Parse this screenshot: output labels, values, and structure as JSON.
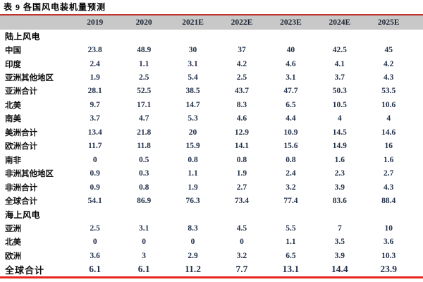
{
  "title": "表 9  各国风电装机量预测",
  "colors": {
    "header_background": "#c8c8c8",
    "top_rule": "#bf362c",
    "bottom_rule": "#e8261d",
    "value_text": "#22304a",
    "label_text": "#101010"
  },
  "chart_data": {
    "type": "table",
    "title": "表 9  各国风电装机量预测",
    "columns": [
      "2019",
      "2020",
      "2021E",
      "2022E",
      "2023E",
      "2024E",
      "2025E"
    ],
    "rows": [
      {
        "label": "陆上风电",
        "kind": "section",
        "values": []
      },
      {
        "label": "中国",
        "kind": "data",
        "values": [
          "23.8",
          "48.9",
          "30",
          "37",
          "40",
          "42.5",
          "45"
        ]
      },
      {
        "label": "印度",
        "kind": "data",
        "values": [
          "2.4",
          "1.1",
          "3.1",
          "4.2",
          "4.6",
          "4.1",
          "4.2"
        ]
      },
      {
        "label": "亚洲其他地区",
        "kind": "data",
        "values": [
          "1.9",
          "2.5",
          "5.4",
          "2.5",
          "3.1",
          "3.7",
          "4.3"
        ]
      },
      {
        "label": "亚洲合计",
        "kind": "data",
        "values": [
          "28.1",
          "52.5",
          "38.5",
          "43.7",
          "47.7",
          "50.3",
          "53.5"
        ]
      },
      {
        "label": "北美",
        "kind": "data",
        "values": [
          "9.7",
          "17.1",
          "14.7",
          "8.3",
          "6.5",
          "10.5",
          "10.6"
        ]
      },
      {
        "label": "南美",
        "kind": "data",
        "values": [
          "3.7",
          "4.7",
          "5.3",
          "4.6",
          "4.4",
          "4",
          "4"
        ]
      },
      {
        "label": "美洲合计",
        "kind": "data",
        "values": [
          "13.4",
          "21.8",
          "20",
          "12.9",
          "10.9",
          "14.5",
          "14.6"
        ]
      },
      {
        "label": "欧洲合计",
        "kind": "data",
        "values": [
          "11.7",
          "11.8",
          "15.9",
          "14.1",
          "15.6",
          "14.9",
          "16"
        ]
      },
      {
        "label": "南非",
        "kind": "data",
        "values": [
          "0",
          "0.5",
          "0.8",
          "0.8",
          "0.8",
          "1.6",
          "1.6"
        ]
      },
      {
        "label": "非洲其他地区",
        "kind": "data",
        "values": [
          "0.9",
          "0.3",
          "1.1",
          "1.9",
          "2.4",
          "2.3",
          "2.7"
        ]
      },
      {
        "label": "非洲合计",
        "kind": "data",
        "values": [
          "0.9",
          "0.8",
          "1.9",
          "2.7",
          "3.2",
          "3.9",
          "4.3"
        ]
      },
      {
        "label": "全球合计",
        "kind": "data",
        "values": [
          "54.1",
          "86.9",
          "76.3",
          "73.4",
          "77.4",
          "83.6",
          "88.4"
        ]
      },
      {
        "label": "海上风电",
        "kind": "section",
        "values": []
      },
      {
        "label": "亚洲",
        "kind": "data",
        "values": [
          "2.5",
          "3.1",
          "8.3",
          "4.5",
          "5.5",
          "7",
          "10"
        ]
      },
      {
        "label": "北美",
        "kind": "data",
        "values": [
          "0",
          "0",
          "0",
          "0",
          "1.1",
          "3.5",
          "3.6"
        ]
      },
      {
        "label": "欧洲",
        "kind": "data",
        "values": [
          "3.6",
          "3",
          "2.9",
          "3.2",
          "6.5",
          "3.9",
          "10.3"
        ]
      },
      {
        "label": "全球合计",
        "kind": "total",
        "values": [
          "6.1",
          "6.1",
          "11.2",
          "7.7",
          "13.1",
          "14.4",
          "23.9"
        ]
      }
    ]
  }
}
